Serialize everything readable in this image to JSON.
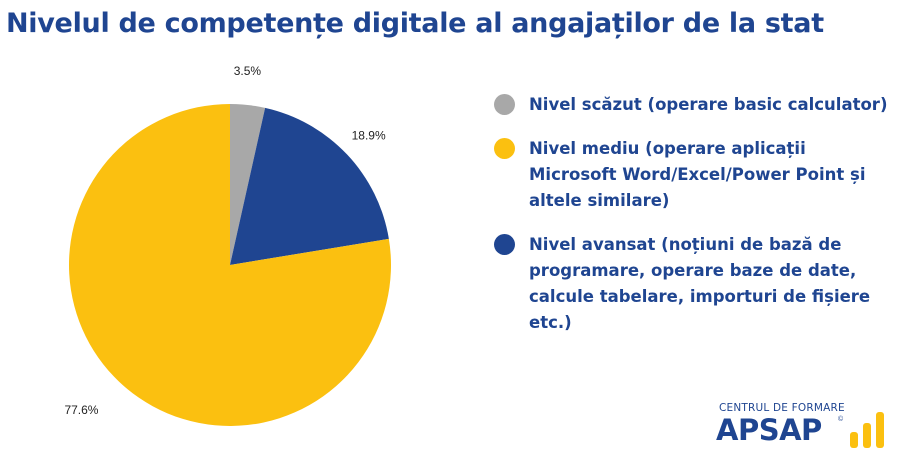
{
  "title": "Nivelul de competențe digitale al angajaților de la stat",
  "chart_data": {
    "type": "pie",
    "title": "Nivelul de competențe digitale al angajaților de la stat",
    "slices": [
      {
        "label": "Nivel scăzut (operare basic calculator)",
        "value": 3.5,
        "value_label": "3.5%",
        "color": "#a8a8a8"
      },
      {
        "label": "Nivel avansat (noțiuni de bază de programare, operare baze de date, calcule tabelare, importuri de fișiere etc.)",
        "value": 18.9,
        "value_label": "18.9%",
        "color": "#1f4591"
      },
      {
        "label": "Nivel mediu (operare aplicații Microsoft Word/Excel/Power Point și altele similare)",
        "value": 77.6,
        "value_label": "77.6%",
        "color": "#fbc010"
      }
    ],
    "legend_position": "right"
  },
  "legend": [
    {
      "label": "Nivel scăzut (operare basic calculator)",
      "color": "#a8a8a8"
    },
    {
      "label": "Nivel mediu (operare aplicații Microsoft Word/Excel/Power Point și altele similare)",
      "color": "#fbc010"
    },
    {
      "label": "Nivel avansat (noțiuni de bază de programare, operare baze de date, calcule tabelare, importuri de fișiere etc.)",
      "color": "#1f4591"
    }
  ],
  "logo": {
    "top_text": "CENTRUL DE FORMARE",
    "main_text": "APSAP",
    "registered": "©"
  },
  "colors": {
    "accent": "#1f4591",
    "brand_yellow": "#fbc010",
    "grey": "#a8a8a8"
  }
}
